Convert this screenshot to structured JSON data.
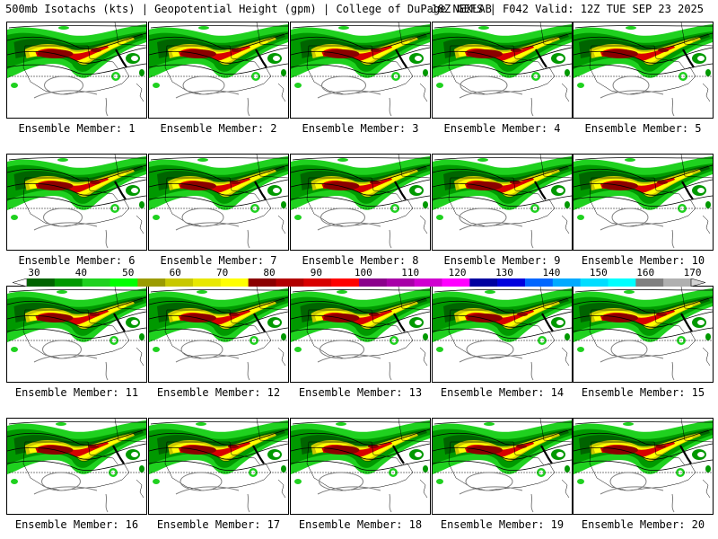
{
  "header": {
    "title_left": "500mb Isotachs (kts) | Geopotential Height (gpm) | College of DuPage NEXLAB",
    "title_right": "18Z GEFS | F042 Valid: 12Z TUE SEP 23 2025"
  },
  "members": [
    {
      "label": "Ensemble Member: 1"
    },
    {
      "label": "Ensemble Member: 2"
    },
    {
      "label": "Ensemble Member: 3"
    },
    {
      "label": "Ensemble Member: 4"
    },
    {
      "label": "Ensemble Member: 5"
    },
    {
      "label": "Ensemble Member: 6"
    },
    {
      "label": "Ensemble Member: 7"
    },
    {
      "label": "Ensemble Member: 8"
    },
    {
      "label": "Ensemble Member: 9"
    },
    {
      "label": "Ensemble Member: 10"
    },
    {
      "label": "Ensemble Member: 11"
    },
    {
      "label": "Ensemble Member: 12"
    },
    {
      "label": "Ensemble Member: 13"
    },
    {
      "label": "Ensemble Member: 14"
    },
    {
      "label": "Ensemble Member: 15"
    },
    {
      "label": "Ensemble Member: 16"
    },
    {
      "label": "Ensemble Member: 17"
    },
    {
      "label": "Ensemble Member: 18"
    },
    {
      "label": "Ensemble Member: 19"
    },
    {
      "label": "Ensemble Member: 20"
    }
  ],
  "colorbar": {
    "ticks": [
      "30",
      "40",
      "50",
      "60",
      "70",
      "80",
      "90",
      "100",
      "110",
      "120",
      "130",
      "140",
      "150",
      "160",
      "170"
    ],
    "colors": [
      "#006400",
      "#009900",
      "#1fd11f",
      "#00ff00",
      "#9b9b00",
      "#c8c800",
      "#e8e800",
      "#ffff00",
      "#8b0000",
      "#b20000",
      "#d80000",
      "#ff0000",
      "#8b008b",
      "#a800a8",
      "#d000d0",
      "#ff00ff",
      "#0000a0",
      "#0000dd",
      "#0066ff",
      "#00aaff",
      "#00ddff",
      "#00ffff",
      "#808080",
      "#b0b0b0"
    ]
  }
}
